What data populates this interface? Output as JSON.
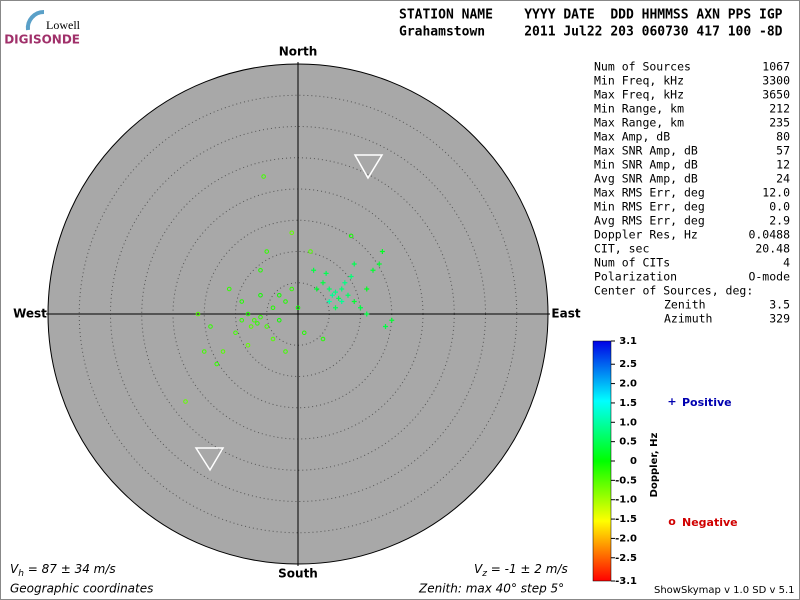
{
  "logo": {
    "top": "Lowell",
    "bottom": "DIGISONDE"
  },
  "header": {
    "line1": "STATION NAME    YYYY DATE  DDD HHMMSS AXN PPS IGP",
    "line2": "Grahamstown     2011 Jul22 203 060730 417 100 -8D"
  },
  "compass": {
    "north": "North",
    "south": "South",
    "west": "West",
    "east": "East"
  },
  "grid": {
    "zenith_max": 40,
    "zenith_step": 5
  },
  "stats": [
    [
      "Num of Sources",
      "1067"
    ],
    [
      "Min Freq, kHz",
      "3300"
    ],
    [
      "Max Freq, kHz",
      "3650"
    ],
    [
      "Min Range, km",
      "212"
    ],
    [
      "Max Range, km",
      "235"
    ],
    [
      "Max Amp, dB",
      "80"
    ],
    [
      "Max SNR Amp, dB",
      "57"
    ],
    [
      "Min SNR Amp, dB",
      "12"
    ],
    [
      "Avg SNR Amp, dB",
      "24"
    ],
    [
      "Max RMS Err, deg",
      "12.0"
    ],
    [
      "Min RMS Err, deg",
      "0.0"
    ],
    [
      "Avg RMS Err, deg",
      "2.9"
    ],
    [
      "Doppler Res, Hz",
      "0.0488"
    ],
    [
      "CIT, sec",
      "20.48"
    ],
    [
      "Num of CITs",
      "4"
    ],
    [
      "Polarization",
      "O-mode"
    ]
  ],
  "center": {
    "title": "Center of Sources, deg:",
    "rows": [
      [
        "Zenith",
        "3.5"
      ],
      [
        "Azimuth",
        "329"
      ]
    ]
  },
  "colorbar": {
    "label": "Doppler, Hz",
    "lim": [
      -3.1,
      3.1
    ],
    "ticks": [
      3.1,
      2.5,
      {
        "value": 2,
        "label": "2.0"
      },
      1.5,
      {
        "value": 1,
        "label": "1.0"
      },
      0.5,
      0,
      -0.5,
      {
        "value": -1,
        "label": "-1.0"
      },
      -1.5,
      {
        "value": -2,
        "label": "-2.0"
      },
      -2.5,
      -3.1
    ]
  },
  "legend": {
    "positive": "Positive",
    "negative": "Negative",
    "positive_symbol": "+",
    "negative_symbol": "o"
  },
  "footer": {
    "vh": {
      "v": "V",
      "sub": "h",
      "rest": " = 87 ± 34 m/s"
    },
    "vz": {
      "v": "V",
      "sub": "z",
      "rest": " = -1 ± 2 m/s"
    },
    "coords": "Geographic coordinates",
    "zenith": "Zenith: max 40°  step 5°",
    "version": "ShowSkymap v 1.0  SD v 5.1"
  },
  "sources": [
    {
      "east": 5,
      "north": 4,
      "doppler": 0.6
    },
    {
      "east": 6,
      "north": 3.5,
      "doppler": 0.8
    },
    {
      "east": 7,
      "north": 4,
      "doppler": 0.7
    },
    {
      "east": 5.5,
      "north": 3,
      "doppler": 0.9
    },
    {
      "east": 6.5,
      "north": 2.5,
      "doppler": 0.5
    },
    {
      "east": 8,
      "north": 3,
      "doppler": 0.6
    },
    {
      "east": 4,
      "north": 5,
      "doppler": 0.4
    },
    {
      "east": 7.5,
      "north": 5,
      "doppler": 0.8
    },
    {
      "east": 9,
      "north": 2,
      "doppler": 0.3
    },
    {
      "east": 10,
      "north": 1,
      "doppler": 0.4
    },
    {
      "east": 6,
      "north": 1,
      "doppler": 0.5
    },
    {
      "east": 3,
      "north": 4,
      "doppler": 0.3
    },
    {
      "east": 11,
      "north": 4,
      "doppler": 0.2
    },
    {
      "east": 12,
      "north": 7,
      "doppler": 0.3
    },
    {
      "east": 13,
      "north": 8,
      "doppler": 0.3
    },
    {
      "east": 14,
      "north": -2,
      "doppler": 0.4
    },
    {
      "east": 15,
      "north": -1,
      "doppler": 0.3
    },
    {
      "east": 4.5,
      "north": 6.5,
      "doppler": 0.5
    },
    {
      "east": 8.5,
      "north": 6,
      "doppler": 0.7
    },
    {
      "east": 2.5,
      "north": 7,
      "doppler": 0.4
    },
    {
      "east": 13.5,
      "north": 10,
      "doppler": 0.2
    },
    {
      "east": 9,
      "north": 8,
      "doppler": 0.5
    },
    {
      "east": 5,
      "north": 2,
      "doppler": 1.0
    },
    {
      "east": 7,
      "north": 2,
      "doppler": 0.9
    },
    {
      "east": 11,
      "north": 0,
      "doppler": 0.4
    },
    {
      "east": -7,
      "north": -1,
      "doppler": -0.4
    },
    {
      "east": -6,
      "north": -0.5,
      "doppler": -0.3
    },
    {
      "east": -7.5,
      "north": -2,
      "doppler": -0.5
    },
    {
      "east": -8,
      "north": 0,
      "doppler": -0.2
    },
    {
      "east": -6.5,
      "north": -1.5,
      "doppler": -0.3
    },
    {
      "east": -5,
      "north": -2,
      "doppler": -0.4
    },
    {
      "east": -9,
      "north": -1,
      "doppler": -0.3
    },
    {
      "east": -4,
      "north": 1,
      "doppler": -0.2
    },
    {
      "east": -3,
      "north": 3,
      "doppler": -0.1
    },
    {
      "east": -2,
      "north": 2,
      "doppler": -0.2
    },
    {
      "east": -1,
      "north": 4,
      "doppler": -0.3
    },
    {
      "east": -10,
      "north": -3,
      "doppler": -0.4
    },
    {
      "east": -12,
      "north": -6,
      "doppler": -0.5
    },
    {
      "east": -15,
      "north": -6,
      "doppler": -0.4
    },
    {
      "east": -18,
      "north": -14,
      "doppler": -0.6
    },
    {
      "east": -14,
      "north": -2,
      "doppler": -0.3
    },
    {
      "east": -16,
      "north": 0,
      "doppler": -0.5
    },
    {
      "east": -11,
      "north": 4,
      "doppler": -0.3
    },
    {
      "east": -9,
      "north": 2,
      "doppler": -0.2
    },
    {
      "east": -6,
      "north": 3,
      "doppler": -0.1
    },
    {
      "east": -4,
      "north": -4,
      "doppler": -0.5
    },
    {
      "east": -2,
      "north": -6,
      "doppler": -0.4
    },
    {
      "east": 1,
      "north": -3,
      "doppler": -0.2
    },
    {
      "east": -5,
      "north": 10,
      "doppler": -0.3
    },
    {
      "east": -1,
      "north": 13,
      "doppler": -0.6
    },
    {
      "east": -6,
      "north": 7,
      "doppler": -0.2
    },
    {
      "east": -8,
      "north": -5,
      "doppler": -0.6
    },
    {
      "east": -3,
      "north": -1,
      "doppler": -0.1
    },
    {
      "east": 0,
      "north": 1,
      "doppler": -0.1
    },
    {
      "east": -13,
      "north": -8,
      "doppler": -0.3
    },
    {
      "east": 4,
      "north": -4,
      "doppler": -0.2
    },
    {
      "east": 2,
      "north": 10,
      "doppler": -0.5
    },
    {
      "east": 8.5,
      "north": 12.5,
      "doppler": -0.1
    },
    {
      "east": -5.5,
      "north": 22,
      "doppler": -0.4
    }
  ]
}
